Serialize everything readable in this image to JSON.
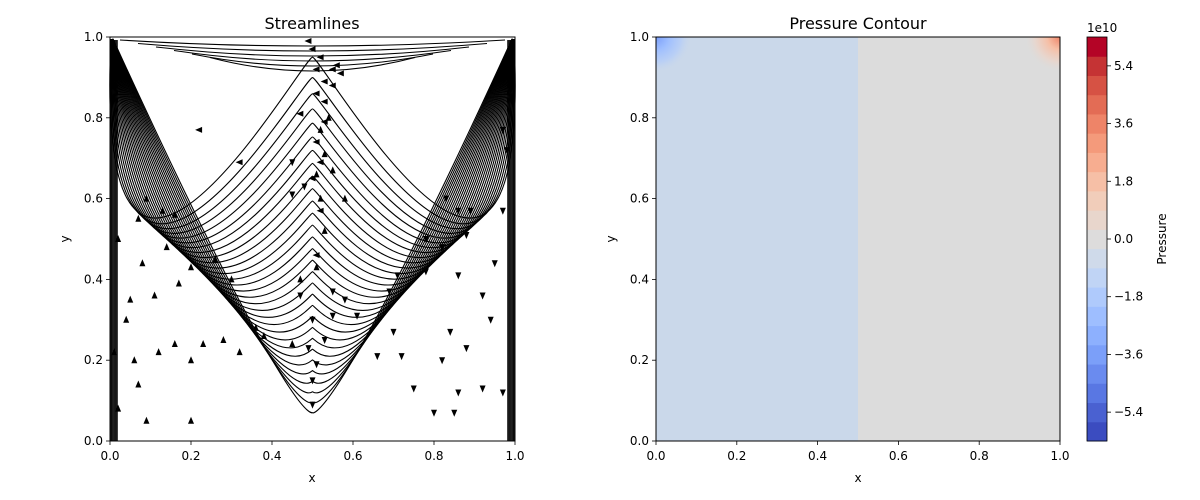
{
  "chart_data": [
    {
      "type": "streamplot",
      "title": "Streamlines",
      "xlabel": "x",
      "ylabel": "y",
      "xlim": [
        0,
        1
      ],
      "ylim": [
        0,
        1
      ],
      "xticks": [
        "0.0",
        "0.2",
        "0.4",
        "0.6",
        "0.8",
        "1.0"
      ],
      "yticks": [
        "0.0",
        "0.2",
        "0.4",
        "0.6",
        "0.8",
        "1.0"
      ],
      "line_color": "#000000",
      "grid": false,
      "flow": "lid-driven cavity; streamlines rise along left side, converge at x≈0.5 toward the top, and descend along right side; leftward flow along the top lid"
    },
    {
      "type": "contour",
      "title": "Pressure Contour",
      "xlabel": "x",
      "ylabel": "y",
      "xlim": [
        0,
        1
      ],
      "ylim": [
        0,
        1
      ],
      "xticks": [
        "0.0",
        "0.2",
        "0.4",
        "0.6",
        "0.8",
        "1.0"
      ],
      "yticks": [
        "0.0",
        "0.2",
        "0.4",
        "0.6",
        "0.8",
        "1.0"
      ],
      "colormap": "coolwarm",
      "regions": [
        {
          "x": [
            0.0,
            0.5
          ],
          "y": [
            0,
            1
          ],
          "level": -0.9,
          "color": "#cad8ea"
        },
        {
          "x": [
            0.5,
            1.0
          ],
          "y": [
            0,
            1
          ],
          "level": 0.9,
          "color": "#dcdcdc"
        }
      ],
      "corner_blobs": [
        {
          "corner": "top-left",
          "x": 0.0,
          "y": 1.0,
          "sign": "negative"
        },
        {
          "corner": "top-right",
          "x": 1.0,
          "y": 1.0,
          "sign": "positive"
        }
      ],
      "colorbar": {
        "label": "Pressure",
        "exponent_label": "1e10",
        "ticks": [
          "−5.4",
          "−3.6",
          "−1.8",
          "0.0",
          "1.8",
          "3.6",
          "5.4"
        ],
        "tick_values": [
          -5.4,
          -3.6,
          -1.8,
          0.0,
          1.8,
          3.6,
          5.4
        ],
        "range": [
          -6.3,
          6.3
        ],
        "levels": 21,
        "colors": [
          "#3b4cc0",
          "#4a61d1",
          "#5977e3",
          "#6a8bef",
          "#7b9ff9",
          "#8db0fe",
          "#9ebeff",
          "#afcafc",
          "#c0d4f5",
          "#cfdaea",
          "#dddcdc",
          "#e8d6cc",
          "#f1cdba",
          "#f6bfa6",
          "#f7ad90",
          "#f49a7b",
          "#ee8468",
          "#e36c55",
          "#d65244",
          "#c53334",
          "#b40426"
        ]
      }
    }
  ]
}
